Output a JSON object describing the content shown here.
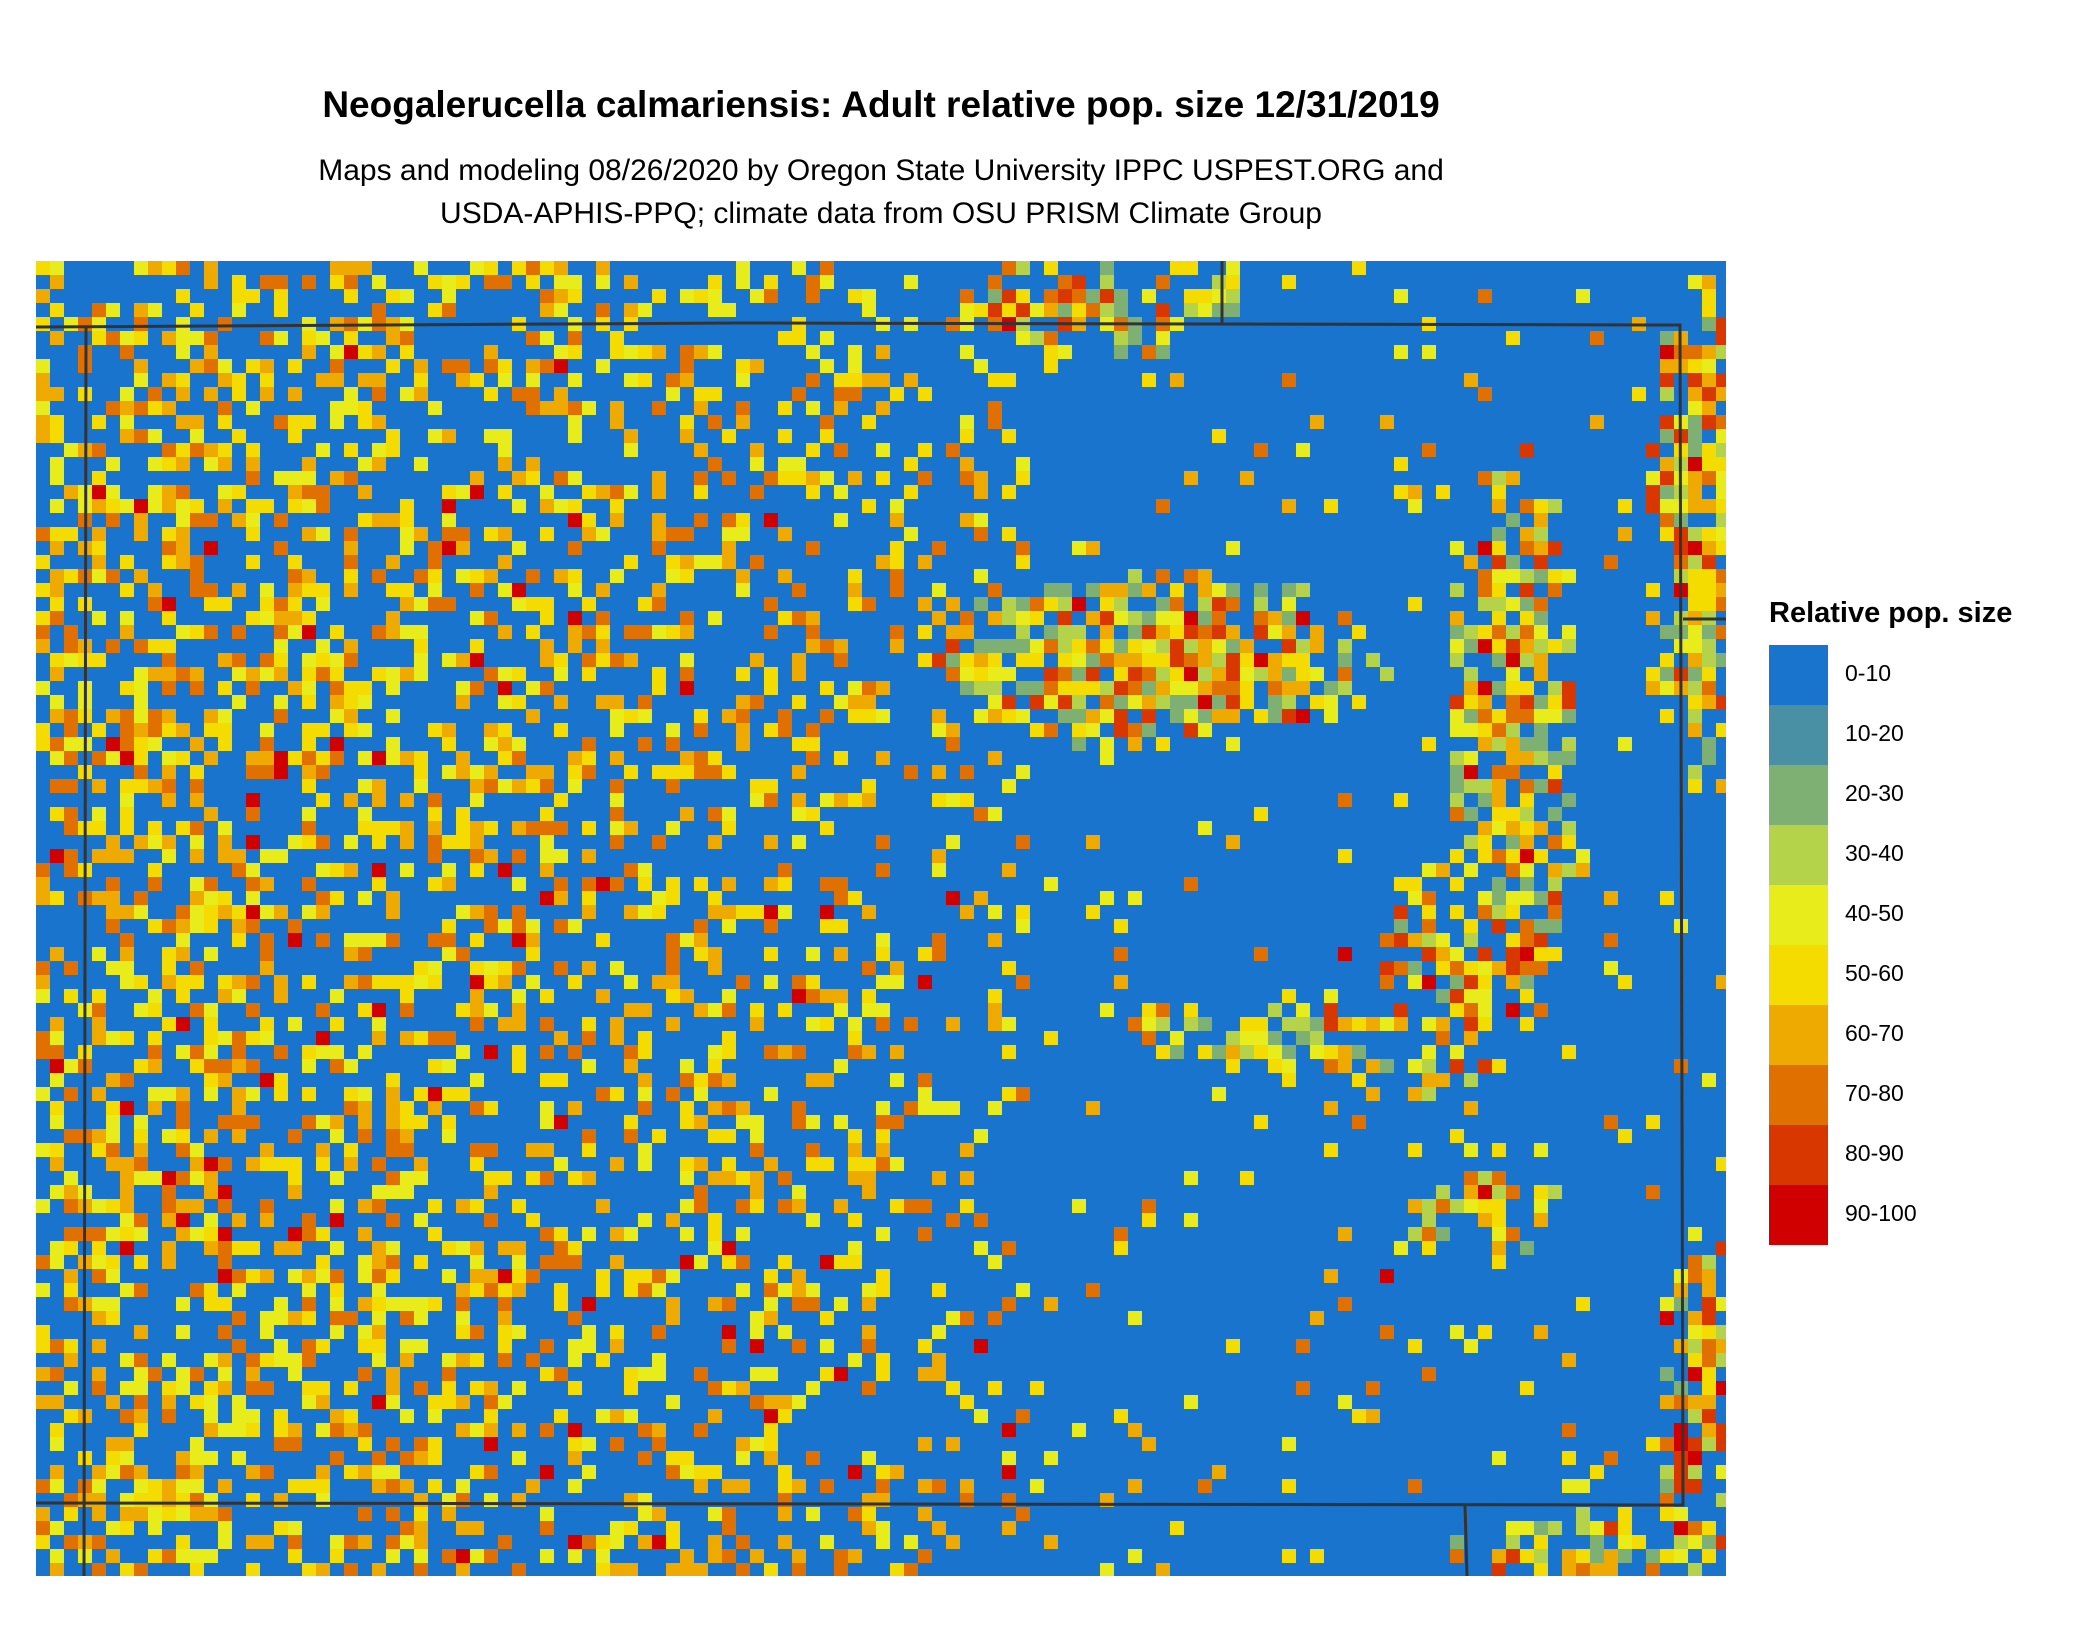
{
  "header": {
    "title": "Neogalerucella calmariensis: Adult relative pop. size 12/31/2019",
    "subtitle_lines": [
      "Maps and modeling 08/26/2020 by Oregon State University IPPC USPEST.ORG and",
      "USDA-APHIS-PPQ; climate data from OSU PRISM Climate Group"
    ]
  },
  "legend": {
    "title": "Relative pop. size",
    "items": [
      {
        "label": "0-10",
        "color": "#1874cd"
      },
      {
        "label": "10-20",
        "color": "#4a90a4"
      },
      {
        "label": "20-30",
        "color": "#7fb073"
      },
      {
        "label": "30-40",
        "color": "#b5d34a"
      },
      {
        "label": "40-50",
        "color": "#e8ec1a"
      },
      {
        "label": "50-60",
        "color": "#f5dc00"
      },
      {
        "label": "60-70",
        "color": "#eeaa00"
      },
      {
        "label": "70-80",
        "color": "#e07000"
      },
      {
        "label": "80-90",
        "color": "#d83800"
      },
      {
        "label": "90-100",
        "color": "#d00000"
      }
    ]
  }
}
